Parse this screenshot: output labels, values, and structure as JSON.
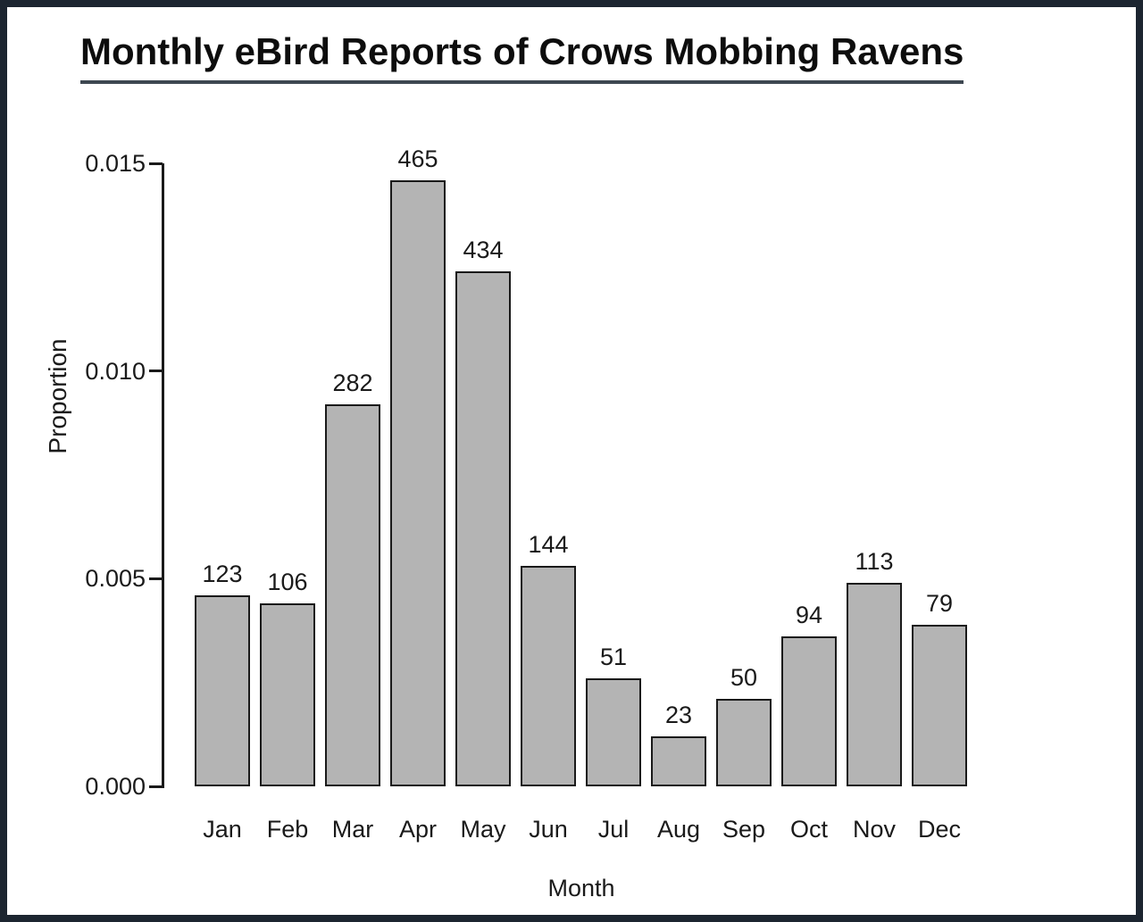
{
  "page": {
    "background": "#ffffff",
    "frame_color": "#1c2530",
    "title_underline_color": "#3e4751"
  },
  "chart_data": {
    "type": "bar",
    "title": "Monthly eBird Reports of Crows Mobbing Ravens",
    "xlabel": "Month",
    "ylabel": "Proportion",
    "ylim": [
      0,
      0.015
    ],
    "ytick_values": [
      0,
      0.005,
      0.01,
      0.015
    ],
    "ytick_labels": [
      "0.000",
      "0.005",
      "0.010",
      "0.015"
    ],
    "categories": [
      "Jan",
      "Feb",
      "Mar",
      "Apr",
      "May",
      "Jun",
      "Jul",
      "Aug",
      "Sep",
      "Oct",
      "Nov",
      "Dec"
    ],
    "values": [
      0.0046,
      0.0044,
      0.0092,
      0.0146,
      0.0124,
      0.0053,
      0.0026,
      0.0012,
      0.0021,
      0.0036,
      0.0049,
      0.0039
    ],
    "bar_labels": [
      "123",
      "106",
      "282",
      "465",
      "434",
      "144",
      "51",
      "23",
      "50",
      "94",
      "113",
      "79"
    ],
    "bar_fill": "#b4b4b4",
    "bar_border": "#1a1a1a",
    "legend": "none",
    "grid": false
  }
}
